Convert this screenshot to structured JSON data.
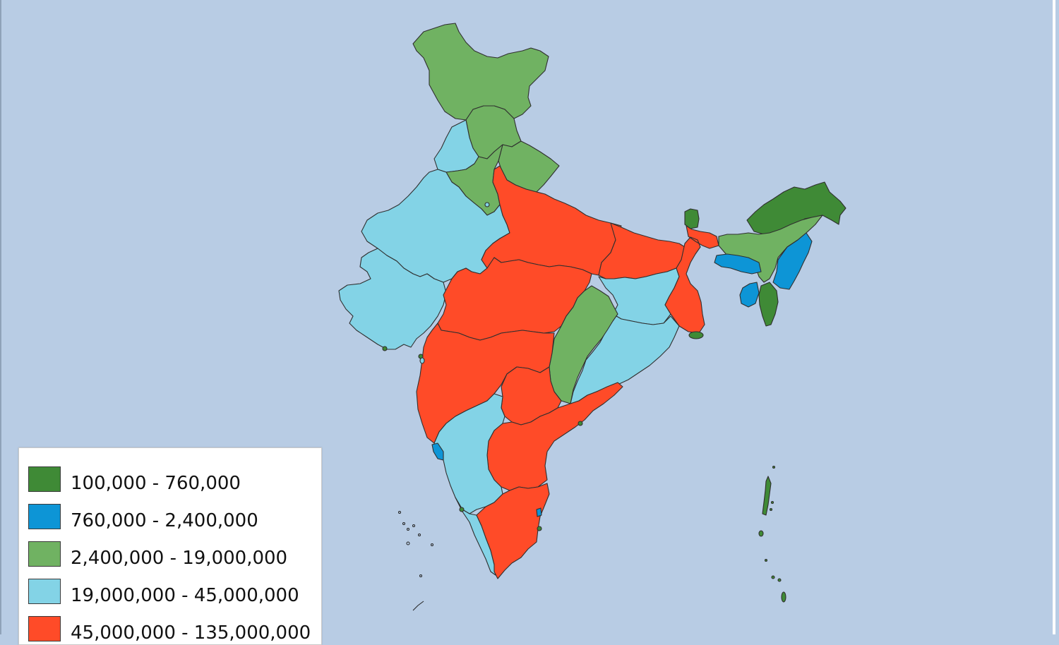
{
  "map": {
    "ocean_color": "#b8cce4",
    "border_color": "#2f2f2f",
    "classes": [
      {
        "id": "c1",
        "label": "100,000 - 760,000",
        "color": "#3f8a36"
      },
      {
        "id": "c2",
        "label": "760,000 - 2,400,000",
        "color": "#0d95d6"
      },
      {
        "id": "c3",
        "label": "2,400,000 - 19,000,000",
        "color": "#70b262"
      },
      {
        "id": "c4",
        "label": "19,000,000 - 45,000,000",
        "color": "#83d3e6"
      },
      {
        "id": "c5",
        "label": "45,000,000 - 135,000,000",
        "color": "#ff4b28"
      }
    ]
  }
}
